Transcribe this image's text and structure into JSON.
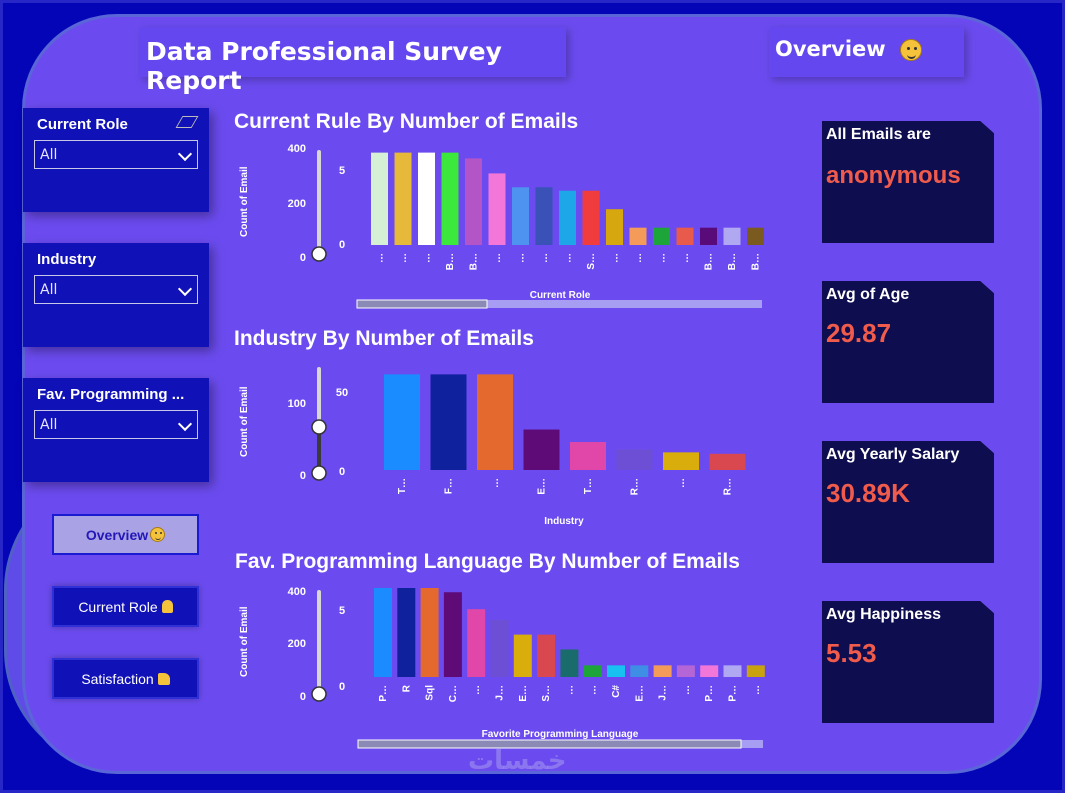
{
  "header": {
    "title": "Data Professional Survey Report",
    "page_label": "Overview"
  },
  "slicers": [
    {
      "label": "Current Role",
      "value": "All"
    },
    {
      "label": "Industry",
      "value": "All"
    },
    {
      "label": "Fav. Programming ...",
      "value": "All"
    }
  ],
  "nav": [
    {
      "label": "Overview"
    },
    {
      "label": "Current Role"
    },
    {
      "label": "Satisfaction"
    }
  ],
  "cards": [
    {
      "label": "All Emails are",
      "value": "anonymous"
    },
    {
      "label": "Avg of Age",
      "value": "29.87"
    },
    {
      "label": "Avg Yearly Salary",
      "value": "30.89K"
    },
    {
      "label": "Avg Happiness",
      "value": "5.53"
    }
  ],
  "chart_data": [
    {
      "type": "bar",
      "title": "Current Rule By Number of Emails",
      "xlabel": "Current Role",
      "ylabel": "Count of Email",
      "y_ticks_left": [
        "400",
        "200",
        "0"
      ],
      "y_ticks_right": [
        "5",
        "0"
      ],
      "ylim": [
        0,
        420
      ],
      "categories": [
        "…",
        "…",
        "…",
        "B…",
        "B…",
        "…",
        "…",
        "…",
        "…",
        "S…",
        "…",
        "…",
        "…",
        "…",
        "B…",
        "B…",
        "B…"
      ],
      "values": [
        400,
        400,
        400,
        400,
        375,
        310,
        250,
        250,
        235,
        235,
        155,
        75,
        75,
        75,
        75,
        75,
        75
      ],
      "colors": [
        "#d5f0d5",
        "#e6b93a",
        "#ffffff",
        "#3be83b",
        "#b455c7",
        "#f277d8",
        "#4e93f0",
        "#3a52b7",
        "#1da6e8",
        "#f03c3c",
        "#d7a70f",
        "#f59b5a",
        "#1ea53a",
        "#e75a4c",
        "#5a0b7a",
        "#b1a8f2",
        "#7b5a20"
      ]
    },
    {
      "type": "bar",
      "title": "Industry By Number of Emails",
      "xlabel": "Industry",
      "ylabel": "Count of Email",
      "y_ticks_left": [
        "100",
        "0"
      ],
      "y_ticks_right": [
        "50",
        "0"
      ],
      "ylim": [
        0,
        140
      ],
      "categories": [
        "T…",
        "F…",
        "…",
        "E…",
        "T…",
        "R…",
        "…",
        "R…"
      ],
      "values": [
        130,
        130,
        130,
        55,
        38,
        28,
        24,
        22
      ],
      "colors": [
        "#1a8cff",
        "#10219e",
        "#e4692f",
        "#5e0b78",
        "#e047a8",
        "#6d4fd6",
        "#d9ad0c",
        "#d9474f"
      ]
    },
    {
      "type": "bar",
      "title": "Fav. Programming Language By Number of Emails",
      "xlabel": "Favorite Programming Language",
      "ylabel": "Count of Email",
      "y_ticks_left": [
        "400",
        "200",
        "0"
      ],
      "y_ticks_right": [
        "5",
        "0"
      ],
      "ylim": [
        0,
        420
      ],
      "categories": [
        "P…",
        "R",
        "Sql",
        "C…",
        "…",
        "J…",
        "E…",
        "S…",
        "…",
        "…",
        "C#",
        "E…",
        "J…",
        "…",
        "P…",
        "P…",
        "…"
      ],
      "values": [
        420,
        420,
        420,
        400,
        320,
        270,
        200,
        200,
        130,
        55,
        55,
        55,
        55,
        55,
        55,
        55,
        55
      ],
      "colors": [
        "#1a8cff",
        "#10219e",
        "#e4692f",
        "#5e0b78",
        "#e047a8",
        "#6d4fd6",
        "#d9ad0c",
        "#d9474f",
        "#1a6b6b",
        "#1ea53a",
        "#18c2f0",
        "#3f8ee6",
        "#f59b5a",
        "#b465d6",
        "#f277d8",
        "#b1a8f2",
        "#c9a20f"
      ]
    }
  ]
}
